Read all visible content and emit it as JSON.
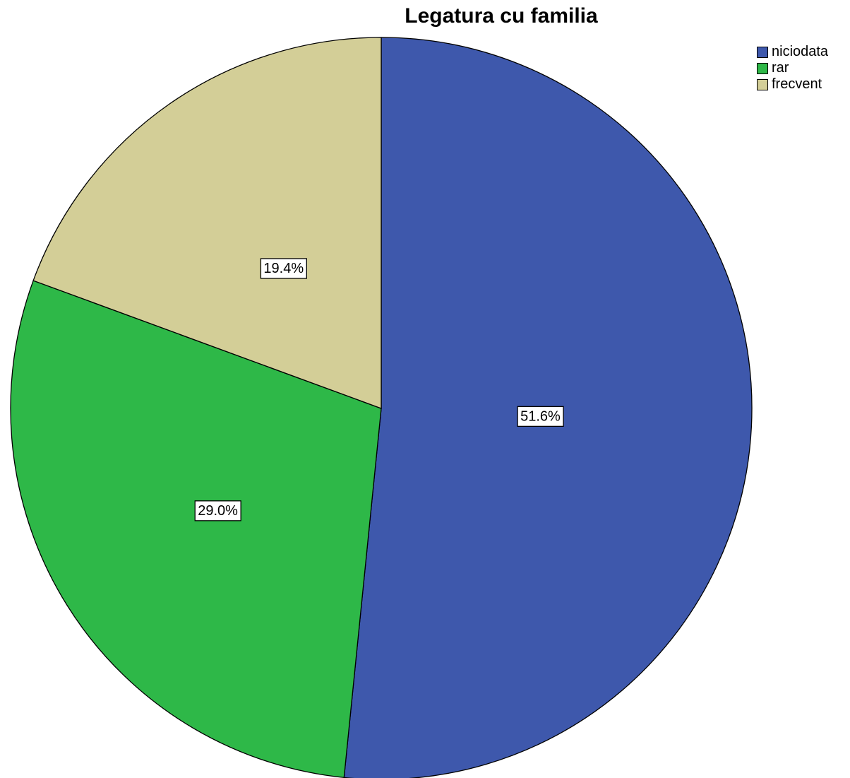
{
  "chart_data": {
    "type": "pie",
    "title": "Legatura cu familia",
    "categories": [
      "niciodata",
      "rar",
      "frecvent"
    ],
    "values": [
      51.6,
      29.0,
      19.4
    ],
    "labels": [
      "51.6%",
      "29.0%",
      "19.4%"
    ],
    "colors": [
      "#3E58AC",
      "#2EB848",
      "#D3CE97"
    ],
    "legend_position": "top-right",
    "start_angle": "12 o'clock",
    "direction": "clockwise"
  }
}
